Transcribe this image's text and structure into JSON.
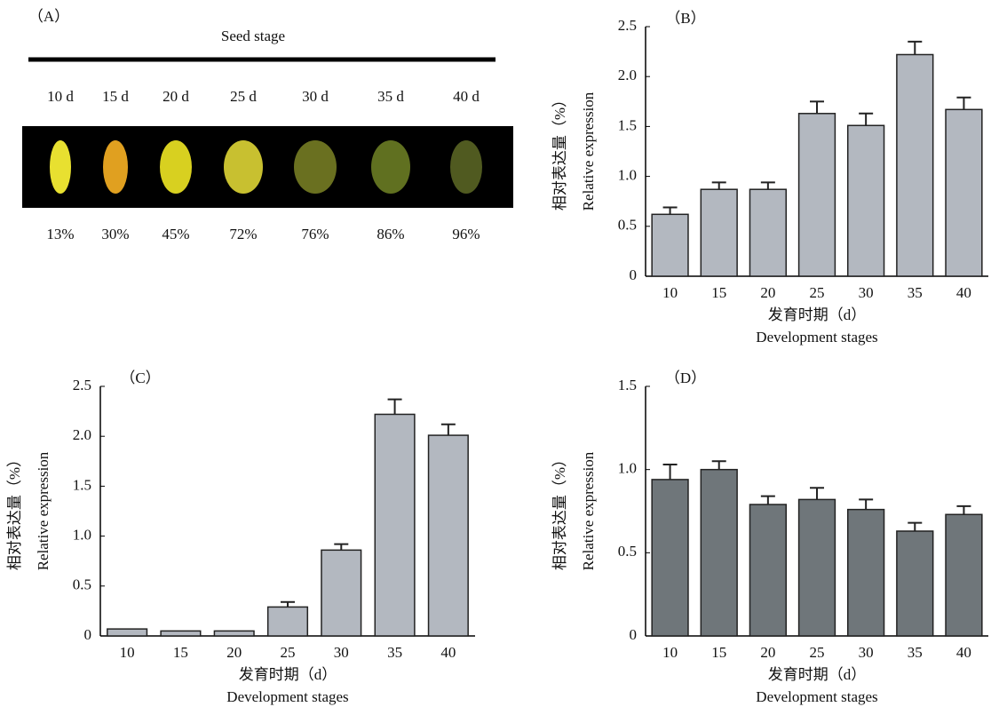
{
  "panel_a": {
    "label": "（A）",
    "title": "Seed stage",
    "stages": [
      "10 d",
      "15 d",
      "20 d",
      "25 d",
      "30 d",
      "35 d",
      "40 d"
    ],
    "percents": [
      "13%",
      "30%",
      "45%",
      "72%",
      "76%",
      "86%",
      "96%"
    ]
  },
  "chart_data": [
    {
      "type": "bar",
      "panel_label": "（B）",
      "ylabel_cn": "相对表达量（%）",
      "ylabel": "Relative expression",
      "xlabel_cn": "发育时期（d）",
      "xlabel": "Development stages",
      "categories": [
        "10",
        "15",
        "20",
        "25",
        "30",
        "35",
        "40"
      ],
      "values": [
        0.62,
        0.87,
        0.87,
        1.63,
        1.51,
        2.22,
        1.67
      ],
      "errors": [
        0.07,
        0.07,
        0.07,
        0.12,
        0.12,
        0.13,
        0.12
      ],
      "color": "#b3b8c0",
      "ylim": [
        0,
        2.5
      ],
      "yticks": [
        0,
        0.5,
        {
          "value": 1,
          "label": "1.0"
        },
        1.5,
        {
          "value": 2,
          "label": "2.0"
        },
        2.5
      ]
    },
    {
      "type": "bar",
      "panel_label": "（C）",
      "ylabel_cn": "相对表达量（%）",
      "ylabel": "Relative expression",
      "xlabel_cn": "发育时期（d）",
      "xlabel": "Development stages",
      "categories": [
        "10",
        "15",
        "20",
        "25",
        "30",
        "35",
        "40"
      ],
      "values": [
        0.07,
        0.05,
        0.05,
        0.29,
        0.86,
        2.22,
        2.01
      ],
      "errors": [
        null,
        null,
        null,
        0.05,
        0.06,
        0.15,
        0.11
      ],
      "color": "#b3b8c0",
      "ylim": [
        0,
        2.5
      ],
      "yticks": [
        0,
        0.5,
        {
          "value": 1,
          "label": "1.0"
        },
        1.5,
        {
          "value": 2,
          "label": "2.0"
        },
        2.5
      ]
    },
    {
      "type": "bar",
      "panel_label": "（D）",
      "ylabel_cn": "相对表达量（%）",
      "ylabel": "Relative expression",
      "xlabel_cn": "发育时期（d）",
      "xlabel": "Development stages",
      "categories": [
        "10",
        "15",
        "20",
        "25",
        "30",
        "35",
        "40"
      ],
      "values": [
        0.94,
        1.0,
        0.79,
        0.82,
        0.76,
        0.63,
        0.73
      ],
      "errors": [
        0.09,
        0.05,
        0.05,
        0.07,
        0.06,
        0.05,
        0.05
      ],
      "color": "#6f767a",
      "ylim": [
        0,
        1.5
      ],
      "yticks": [
        0,
        0.5,
        {
          "value": 1,
          "label": "1.0"
        },
        1.5
      ]
    }
  ]
}
